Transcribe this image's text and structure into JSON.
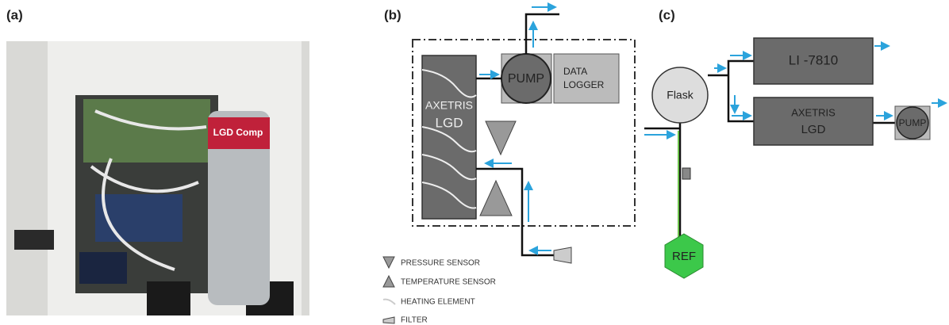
{
  "panel_a": {
    "label": "(a)",
    "photo_text": "LGD Comp"
  },
  "panel_b": {
    "label": "(b)",
    "lgd": [
      "AXETRIS",
      "LGD"
    ],
    "pump": "PUMP",
    "logger": [
      "DATA",
      "LOGGER"
    ],
    "legend": [
      "PRESSURE SENSOR",
      "TEMPERATURE SENSOR",
      "HEATING ELEMENT",
      "FILTER"
    ]
  },
  "panel_c": {
    "label": "(c)",
    "flask": "Flask",
    "analyzer": "LI -7810",
    "lgd": [
      "AXETRIS",
      "LGD"
    ],
    "pump": "PUMP",
    "ref": "REF"
  }
}
